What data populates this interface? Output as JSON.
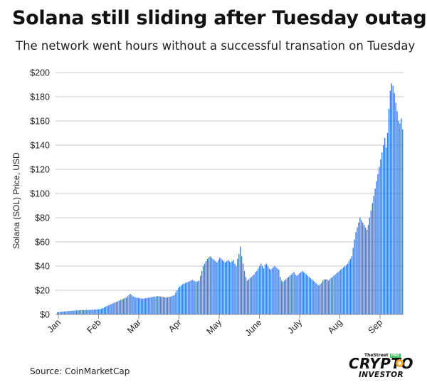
{
  "title": "Solana still sliding after Tuesday outage",
  "subtitle": "The network went hours without a successful transation on Tuesday",
  "source": "Source: CoinMarketCap",
  "logo": {
    "small_text": "TheStreet",
    "pro_badge": "PRO",
    "name": "CRYPTO",
    "tagline": "INVESTOR"
  },
  "colors": {
    "bar": "#3a80ec",
    "grid": "#c9c9c9",
    "axis": "#8c8c8c",
    "text": "#222222",
    "accent": "#f5a623"
  },
  "chart_data": {
    "type": "bar",
    "ylabel": "Solana (SOL) Price, USD",
    "xlabel": "",
    "ylim": [
      0,
      200
    ],
    "y_ticks": [
      0,
      20,
      40,
      60,
      80,
      100,
      120,
      140,
      160,
      180,
      200
    ],
    "y_tick_labels": [
      "$0",
      "$20",
      "$40",
      "$60",
      "$80",
      "$100",
      "$120",
      "$140",
      "$160",
      "$180",
      "$200"
    ],
    "x_tick_labels": [
      "Jan",
      "Feb",
      "Mar",
      "Apr",
      "May",
      "June",
      "July",
      "Aug",
      "Sep"
    ],
    "grid": true,
    "series": [
      {
        "values": [
          1.8,
          1.9,
          2.1,
          2.2,
          2.3,
          2.4,
          2.6,
          2.7,
          2.8,
          2.9,
          3,
          3.1,
          3.2,
          3.3,
          3.4,
          3.4,
          3.5,
          3.5,
          3.6,
          3.6,
          3.6,
          3.7,
          3.7,
          3.8,
          3.8,
          3.9,
          3.9,
          4,
          4,
          4.1,
          4.2,
          4.4,
          4.8,
          5.3,
          5.8,
          6.4,
          7,
          7.5,
          8,
          8.5,
          9,
          9.5,
          10,
          10.5,
          11,
          11.5,
          12,
          12.5,
          13,
          13.5,
          14,
          15,
          16,
          17,
          16,
          15,
          14.5,
          14,
          13.8,
          13.6,
          13.4,
          13.2,
          13,
          13.2,
          13.4,
          13.6,
          13.8,
          14,
          14.2,
          14.4,
          14.6,
          14.8,
          15,
          15.2,
          15,
          14.8,
          14.6,
          14.4,
          14.2,
          14,
          14.2,
          14.4,
          14.6,
          15,
          15.5,
          16,
          18,
          20,
          22,
          23,
          24,
          25,
          25.5,
          26,
          26.5,
          27,
          27.5,
          28,
          28.5,
          28,
          27.5,
          27,
          27.5,
          28,
          32,
          36,
          40,
          42,
          44,
          46,
          47,
          48,
          47,
          46,
          45,
          44,
          43,
          45,
          47,
          46,
          45,
          44,
          43,
          44,
          45,
          44,
          43,
          44,
          45,
          42,
          40,
          46,
          50,
          56,
          48,
          42,
          36,
          31,
          28,
          29,
          30,
          31,
          32,
          33,
          35,
          36,
          38,
          40,
          42,
          40,
          38,
          41,
          42,
          40,
          38,
          37,
          38,
          39,
          40,
          39,
          38,
          37,
          31,
          28,
          27,
          28,
          29,
          30,
          31,
          32,
          33,
          34,
          35,
          33,
          32,
          33,
          34,
          35,
          36,
          35,
          34,
          33,
          32,
          31,
          30,
          29,
          28,
          27,
          26,
          25,
          24,
          25,
          26,
          28,
          29,
          29,
          29,
          28,
          29,
          30,
          31,
          32,
          33,
          34,
          35,
          36,
          37,
          38,
          39,
          40,
          41,
          42,
          44,
          46,
          48,
          55,
          62,
          68,
          72,
          76,
          80,
          78,
          76,
          74,
          72,
          70,
          74,
          80,
          86,
          92,
          98,
          104,
          110,
          116,
          122,
          128,
          134,
          140,
          146,
          138,
          150,
          170,
          185,
          191,
          189,
          183,
          175,
          168,
          160,
          158,
          162,
          153
        ]
      }
    ]
  }
}
